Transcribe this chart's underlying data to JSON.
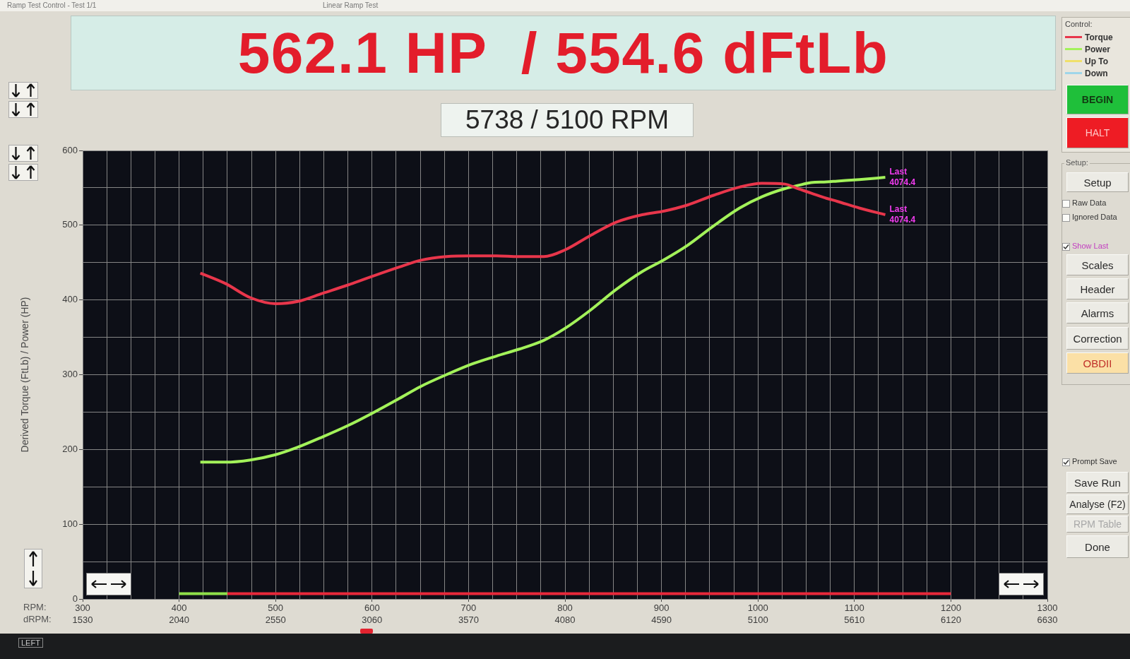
{
  "chart_data": {
    "type": "line",
    "title": "562.1 HP  / 554.6 dFtLb",
    "subtitle": "5738 / 5100 RPM",
    "xlabel": "RPM:",
    "x2label": "dRPM:",
    "ylabel": "Derived Torque (FtLb) / Power (HP)",
    "legend_title": "Control:",
    "legend": "top right",
    "grid": true,
    "x": [
      422,
      448,
      474,
      500,
      523,
      549,
      575,
      601,
      628,
      650,
      677,
      703,
      729,
      752,
      778,
      800,
      826,
      853,
      880,
      903,
      927,
      954,
      981,
      1004,
      1028,
      1041,
      1055,
      1071,
      1082,
      1105,
      1132
    ],
    "series": [
      {
        "name": "Torque",
        "color": "#e8364b",
        "values": [
          436,
          422,
          403,
          395,
          398,
          409,
          420,
          432,
          444,
          453,
          458,
          459,
          459,
          458,
          458,
          467,
          486,
          504,
          514,
          519,
          527,
          540,
          551,
          556,
          555,
          549,
          543,
          536,
          532,
          523,
          514
        ]
      },
      {
        "name": "Power",
        "color": "#a3f25a",
        "values": [
          183,
          183,
          186,
          193,
          203,
          217,
          232,
          249,
          268,
          284,
          300,
          314,
          325,
          334,
          346,
          362,
          386,
          414,
          438,
          454,
          473,
          499,
          523,
          538,
          549,
          553,
          557,
          558,
          559,
          561,
          564
        ]
      },
      {
        "name": "Up To",
        "color": "#f0e06a",
        "values": [
          null,
          null,
          null,
          null,
          null,
          null,
          null,
          null,
          null,
          null,
          null,
          null,
          null,
          null,
          null,
          null,
          null,
          null,
          null,
          null,
          null,
          null,
          null,
          null,
          null,
          null,
          null,
          null,
          null,
          null,
          null
        ]
      },
      {
        "name": "Down",
        "color": "#9fd6ea",
        "values": [
          null,
          null,
          null,
          null,
          null,
          null,
          null,
          null,
          null,
          null,
          null,
          null,
          null,
          null,
          null,
          null,
          null,
          null,
          null,
          null,
          null,
          null,
          null,
          null,
          null,
          null,
          null,
          null,
          null,
          null,
          null
        ]
      },
      {
        "color": "#8fe04a",
        "x": [
          400,
          450
        ],
        "values": [
          7,
          7
        ]
      },
      {
        "color": "#e8283a",
        "x": [
          450,
          1200
        ],
        "values": [
          7,
          7
        ]
      }
    ],
    "xlim": [
      300,
      1300
    ],
    "xticks": [
      300,
      {
        "value": 325,
        "label": null
      },
      {
        "value": 350,
        "label": null
      },
      {
        "value": 375,
        "label": null
      },
      400,
      {
        "value": 425,
        "label": null
      },
      {
        "value": 450,
        "label": null
      },
      {
        "value": 475,
        "label": null
      },
      500,
      {
        "value": 525,
        "label": null
      },
      {
        "value": 550,
        "label": null
      },
      {
        "value": 575,
        "label": null
      },
      600,
      {
        "value": 625,
        "label": null
      },
      {
        "value": 650,
        "label": null
      },
      {
        "value": 675,
        "label": null
      },
      700,
      {
        "value": 725,
        "label": null
      },
      {
        "value": 750,
        "label": null
      },
      {
        "value": 775,
        "label": null
      },
      800,
      {
        "value": 825,
        "label": null
      },
      {
        "value": 850,
        "label": null
      },
      {
        "value": 875,
        "label": null
      },
      900,
      {
        "value": 925,
        "label": null
      },
      {
        "value": 950,
        "label": null
      },
      {
        "value": 975,
        "label": null
      },
      1000,
      {
        "value": 1025,
        "label": null
      },
      {
        "value": 1050,
        "label": null
      },
      {
        "value": 1075,
        "label": null
      },
      1100,
      {
        "value": 1125,
        "label": null
      },
      {
        "value": 1150,
        "label": null
      },
      {
        "value": 1175,
        "label": null
      },
      1200,
      {
        "value": 1225,
        "label": null
      },
      {
        "value": 1250,
        "label": null
      },
      {
        "value": 1275,
        "label": null
      },
      1300
    ],
    "x2lim": [
      1530,
      6630
    ],
    "x2ticks": [
      1530,
      2040,
      2550,
      3060,
      3570,
      4080,
      4590,
      5100,
      5610,
      6120,
      6630
    ],
    "ylim": [
      0,
      600
    ],
    "yticks": [
      0,
      {
        "value": 50,
        "label": null
      },
      100,
      {
        "value": 150,
        "label": null
      },
      200,
      {
        "value": 250,
        "label": null
      },
      300,
      {
        "value": 350,
        "label": null
      },
      400,
      {
        "value": 450,
        "label": null
      },
      500,
      {
        "value": 550,
        "label": null
      },
      600
    ],
    "annotations": [
      "Ramp Test Control - Test 1/1",
      "Linear Ramp Test",
      "BEGIN",
      "HALT",
      "Setup:",
      "Setup",
      "Raw Data",
      "Ignored Data",
      "Show Last",
      "Scales",
      "Header",
      "Alarms",
      "Correction",
      "OBDII",
      "Prompt Save",
      "Save Run",
      "Analyse (F2)",
      "RPM Table",
      "Done",
      "LEFT",
      {
        "text": "Last\n4074.4",
        "x": 1132,
        "y": 564
      },
      {
        "text": "Last\n4074.4",
        "x": 1132,
        "y": 514
      }
    ]
  }
}
